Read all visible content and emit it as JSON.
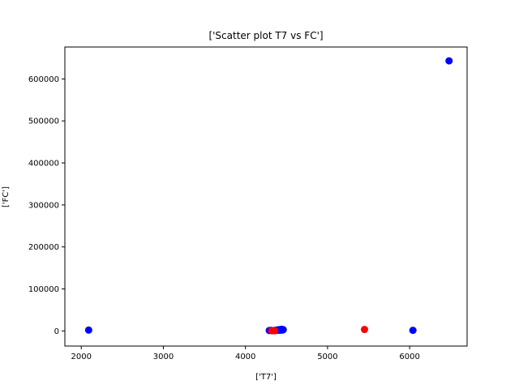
{
  "chart_data": {
    "type": "scatter",
    "title": "['Scatter plot T7 vs FC']",
    "xlabel": "['T7']",
    "ylabel": "['FC']",
    "xlim": [
      1800,
      6700
    ],
    "ylim": [
      -36000,
      676000
    ],
    "xticks": [
      2000,
      3000,
      4000,
      5000,
      6000
    ],
    "yticks": [
      0,
      100000,
      200000,
      300000,
      400000,
      500000,
      600000
    ],
    "grid": false,
    "series": [
      {
        "color": "#0000ff",
        "points": [
          {
            "x": 2090,
            "y": 2000
          },
          {
            "x": 4290,
            "y": 1000
          },
          {
            "x": 4310,
            "y": 1500
          },
          {
            "x": 4330,
            "y": 800
          },
          {
            "x": 4350,
            "y": 1200
          },
          {
            "x": 4380,
            "y": 2000
          },
          {
            "x": 4400,
            "y": 1500
          },
          {
            "x": 4410,
            "y": 3000
          },
          {
            "x": 4420,
            "y": 2500
          },
          {
            "x": 4430,
            "y": 1800
          },
          {
            "x": 4440,
            "y": 4000
          },
          {
            "x": 4450,
            "y": 2000
          },
          {
            "x": 4460,
            "y": 3000
          },
          {
            "x": 6040,
            "y": 1500
          },
          {
            "x": 6480,
            "y": 643000
          }
        ]
      },
      {
        "color": "#ff0000",
        "points": [
          {
            "x": 4320,
            "y": 500
          },
          {
            "x": 4340,
            "y": 800
          },
          {
            "x": 4355,
            "y": 300
          },
          {
            "x": 5450,
            "y": 3500
          }
        ]
      }
    ]
  }
}
